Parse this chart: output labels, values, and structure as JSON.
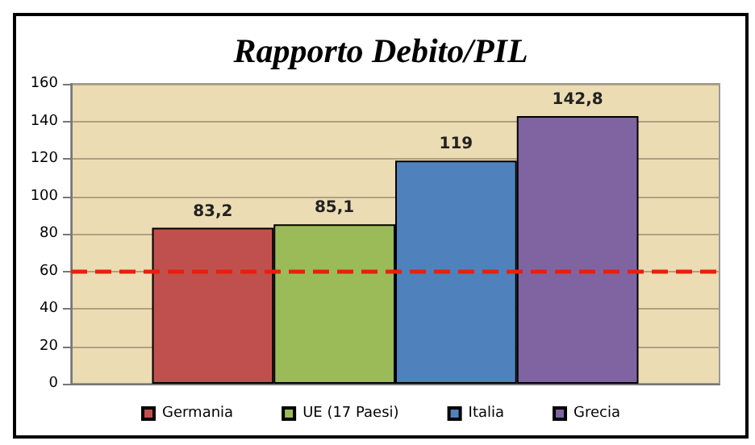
{
  "chart_data": {
    "type": "bar",
    "title": "Rapporto Debito/PIL",
    "categories": [
      null
    ],
    "series": [
      {
        "name": "Germania",
        "color": "#c0504d",
        "values": [
          83.2
        ],
        "value_labels": [
          "83,2"
        ]
      },
      {
        "name": "UE (17 Paesi)",
        "color": "#9bbb59",
        "values": [
          85.1
        ],
        "value_labels": [
          "85,1"
        ]
      },
      {
        "name": "Italia",
        "color": "#4f81bd",
        "values": [
          119
        ],
        "value_labels": [
          "119"
        ]
      },
      {
        "name": "Grecia",
        "color": "#8064a2",
        "values": [
          142.8
        ],
        "value_labels": [
          "142,8"
        ]
      }
    ],
    "ylim": [
      0,
      160
    ],
    "yticks": [
      0,
      20,
      40,
      60,
      80,
      100,
      120,
      140,
      160
    ],
    "ref_lines": [
      {
        "axis": "y",
        "value": 60,
        "color": "#e8200c",
        "line_style": "dashed"
      }
    ],
    "grid": "y",
    "legend": "bottom"
  }
}
